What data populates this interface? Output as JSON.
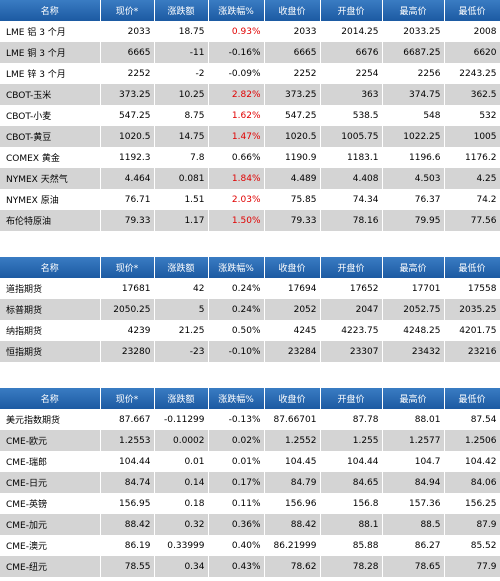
{
  "headers": [
    "名称",
    "现价*",
    "涨跌额",
    "涨跌幅%",
    "收盘价",
    "开盘价",
    "最高价",
    "最低价"
  ],
  "table1": [
    {
      "name": "LME 铝 3 个月",
      "price": "2033",
      "chg": "18.75",
      "pct": "0.93%",
      "close": "2033",
      "open": "2014.25",
      "high": "2033.25",
      "low": "2008",
      "red": true
    },
    {
      "name": "LME 铜 3 个月",
      "price": "6665",
      "chg": "-11",
      "pct": "-0.16%",
      "close": "6665",
      "open": "6676",
      "high": "6687.25",
      "low": "6620",
      "red": false
    },
    {
      "name": "LME 锌 3 个月",
      "price": "2252",
      "chg": "-2",
      "pct": "-0.09%",
      "close": "2252",
      "open": "2254",
      "high": "2256",
      "low": "2243.25",
      "red": false
    },
    {
      "name": "CBOT-玉米",
      "price": "373.25",
      "chg": "10.25",
      "pct": "2.82%",
      "close": "373.25",
      "open": "363",
      "high": "374.75",
      "low": "362.5",
      "red": true
    },
    {
      "name": "CBOT-小麦",
      "price": "547.25",
      "chg": "8.75",
      "pct": "1.62%",
      "close": "547.25",
      "open": "538.5",
      "high": "548",
      "low": "532",
      "red": true
    },
    {
      "name": "CBOT-黄豆",
      "price": "1020.5",
      "chg": "14.75",
      "pct": "1.47%",
      "close": "1020.5",
      "open": "1005.75",
      "high": "1022.25",
      "low": "1005",
      "red": true
    },
    {
      "name": "COMEX 黄金",
      "price": "1192.3",
      "chg": "7.8",
      "pct": "0.66%",
      "close": "1190.9",
      "open": "1183.1",
      "high": "1196.6",
      "low": "1176.2",
      "red": false
    },
    {
      "name": "NYMEX 天然气",
      "price": "4.464",
      "chg": "0.081",
      "pct": "1.84%",
      "close": "4.489",
      "open": "4.408",
      "high": "4.503",
      "low": "4.25",
      "red": true
    },
    {
      "name": "NYMEX 原油",
      "price": "76.71",
      "chg": "1.51",
      "pct": "2.03%",
      "close": "75.85",
      "open": "74.34",
      "high": "76.37",
      "low": "74.2",
      "red": true
    },
    {
      "name": "布伦特原油",
      "price": "79.33",
      "chg": "1.17",
      "pct": "1.50%",
      "close": "79.33",
      "open": "78.16",
      "high": "79.95",
      "low": "77.56",
      "red": true
    }
  ],
  "table2": [
    {
      "name": "道指期货",
      "price": "17681",
      "chg": "42",
      "pct": "0.24%",
      "close": "17694",
      "open": "17652",
      "high": "17701",
      "low": "17558",
      "red": false
    },
    {
      "name": "标普期货",
      "price": "2050.25",
      "chg": "5",
      "pct": "0.24%",
      "close": "2052",
      "open": "2047",
      "high": "2052.75",
      "low": "2035.25",
      "red": false
    },
    {
      "name": "纳指期货",
      "price": "4239",
      "chg": "21.25",
      "pct": "0.50%",
      "close": "4245",
      "open": "4223.75",
      "high": "4248.25",
      "low": "4201.75",
      "red": false
    },
    {
      "name": "恒指期货",
      "price": "23280",
      "chg": "-23",
      "pct": "-0.10%",
      "close": "23284",
      "open": "23307",
      "high": "23432",
      "low": "23216",
      "red": false
    }
  ],
  "table3": [
    {
      "name": "美元指数期货",
      "price": "87.667",
      "chg": "-0.11299",
      "pct": "-0.13%",
      "close": "87.66701",
      "open": "87.78",
      "high": "88.01",
      "low": "87.54",
      "red": false
    },
    {
      "name": "CME-欧元",
      "price": "1.2553",
      "chg": "0.0002",
      "pct": "0.02%",
      "close": "1.2552",
      "open": "1.255",
      "high": "1.2577",
      "low": "1.2506",
      "red": false
    },
    {
      "name": "CME-瑞郎",
      "price": "104.44",
      "chg": "0.01",
      "pct": "0.01%",
      "close": "104.45",
      "open": "104.44",
      "high": "104.7",
      "low": "104.42",
      "red": false
    },
    {
      "name": "CME-日元",
      "price": "84.74",
      "chg": "0.14",
      "pct": "0.17%",
      "close": "84.79",
      "open": "84.65",
      "high": "84.94",
      "low": "84.06",
      "red": false
    },
    {
      "name": "CME-英镑",
      "price": "156.95",
      "chg": "0.18",
      "pct": "0.11%",
      "close": "156.96",
      "open": "156.8",
      "high": "157.36",
      "low": "156.25",
      "red": false
    },
    {
      "name": "CME-加元",
      "price": "88.42",
      "chg": "0.32",
      "pct": "0.36%",
      "close": "88.42",
      "open": "88.1",
      "high": "88.5",
      "low": "87.9",
      "red": false
    },
    {
      "name": "CME-澳元",
      "price": "86.19",
      "chg": "0.33999",
      "pct": "0.40%",
      "close": "86.21999",
      "open": "85.88",
      "high": "86.27",
      "low": "85.52",
      "red": false
    },
    {
      "name": "CME-纽元",
      "price": "78.55",
      "chg": "0.34",
      "pct": "0.43%",
      "close": "78.62",
      "open": "78.28",
      "high": "78.65",
      "low": "77.9",
      "red": false
    }
  ]
}
